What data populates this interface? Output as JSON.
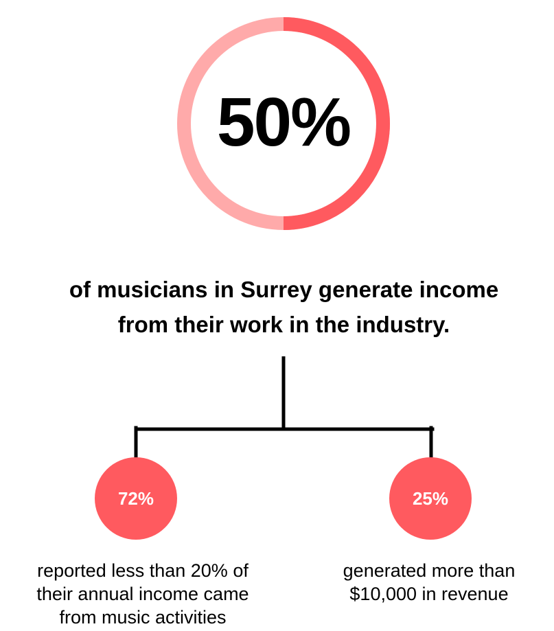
{
  "main_stat": {
    "value_label": "50%",
    "fraction": 0.5,
    "ring_fill_color": "#ff5a5f",
    "ring_track_color": "#ffaaaa"
  },
  "headline": {
    "line1": "of musicians in Surrey generate income",
    "line2": "from their work in the industry."
  },
  "branches": [
    {
      "value_label": "72%",
      "description_lines": [
        "reported less than 20% of",
        "their annual income came",
        "from music activities"
      ]
    },
    {
      "value_label": "25%",
      "description_lines": [
        "generated more than",
        "$10,000 in revenue"
      ]
    }
  ],
  "colors": {
    "accent": "#ff5a5f",
    "accent_light": "#ffaaaa",
    "text": "#000000",
    "connector": "#000000"
  }
}
